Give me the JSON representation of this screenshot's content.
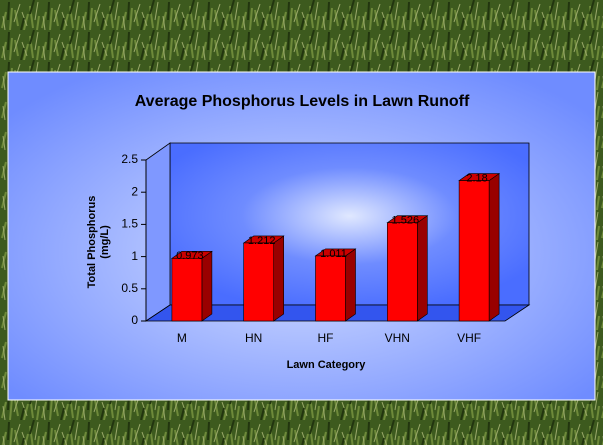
{
  "chart_data": {
    "type": "bar3d",
    "title": "Average Phosphorus Levels in Lawn Runoff",
    "xlabel": "Lawn Category",
    "ylabel": [
      "Total Phosphorus",
      "(mg/L)"
    ],
    "categories": [
      "M",
      "HN",
      "HF",
      "VHN",
      "VHF"
    ],
    "values": [
      0.973,
      1.212,
      1.011,
      1.526,
      2.18
    ],
    "color": "#ff0000",
    "ylim": [
      0,
      2.5
    ],
    "yticks": [
      0,
      0.5,
      1,
      1.5,
      2,
      2.5
    ],
    "grid": false
  }
}
